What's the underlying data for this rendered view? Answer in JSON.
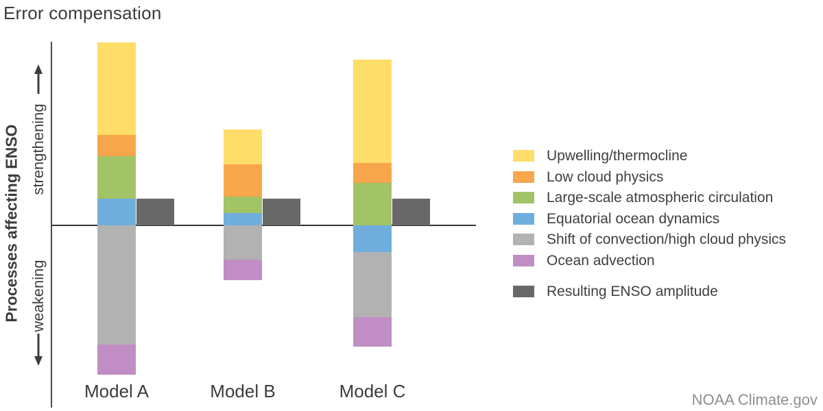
{
  "title": "Error compensation",
  "y_axis": {
    "label": "Processes affecting ENSO",
    "upper_label": "strengthening",
    "lower_label": "weakening"
  },
  "attribution": "NOAA Climate.gov",
  "colors": {
    "upwelling_thermocline": "#FFDD69",
    "low_cloud_physics": "#F8A64B",
    "large_scale_atmospheric_circulation": "#A2C366",
    "equatorial_ocean_dynamics": "#6FAEDC",
    "shift_of_convection_high_cloud_physics": "#B2B2B2",
    "ocean_advection": "#C08EC4",
    "resulting_enso_amplitude": "#686868",
    "text_dark": "#3C3C3C",
    "text_muted": "#8E8E8E",
    "axis": "#4A4A4A"
  },
  "legend": {
    "process_items": [
      {
        "key": "upwelling_thermocline",
        "label": "Upwelling/thermocline"
      },
      {
        "key": "low_cloud_physics",
        "label": "Low cloud physics"
      },
      {
        "key": "large_scale_atmospheric_circulation",
        "label": "Large-scale atmospheric circulation"
      },
      {
        "key": "equatorial_ocean_dynamics",
        "label": "Equatorial ocean dynamics"
      },
      {
        "key": "shift_of_convection_high_cloud_physics",
        "label": "Shift of convection/high cloud physics"
      },
      {
        "key": "ocean_advection",
        "label": "Ocean advection"
      }
    ],
    "result_item": {
      "key": "resulting_enso_amplitude",
      "label": "Resulting ENSO amplitude"
    }
  },
  "chart_data": {
    "type": "bar",
    "subtype": "diverging stacked bars (schematic, no numeric axis)",
    "title": "Error compensation",
    "xlabel": "",
    "ylabel": "Processes affecting ENSO (strengthening up / weakening down)",
    "units": "arbitrary relative contribution (pixel heights read from figure)",
    "grid": false,
    "legend_position": "right",
    "categories": [
      "Model A",
      "Model B",
      "Model C"
    ],
    "series": [
      {
        "name": "Upwelling/thermocline",
        "key": "upwelling_thermocline",
        "values": [
          135,
          51,
          151
        ]
      },
      {
        "name": "Low cloud physics",
        "key": "low_cloud_physics",
        "values": [
          31,
          47,
          29
        ]
      },
      {
        "name": "Large-scale atmospheric circulation",
        "key": "large_scale_atmospheric_circulation",
        "values": [
          62,
          24,
          62
        ]
      },
      {
        "name": "Equatorial ocean dynamics",
        "key": "equatorial_ocean_dynamics",
        "values": [
          39,
          18,
          -39
        ]
      },
      {
        "name": "Shift of convection/high cloud physics",
        "key": "shift_of_convection_high_cloud_physics",
        "values": [
          -174,
          -50,
          -95
        ]
      },
      {
        "name": "Ocean advection",
        "key": "ocean_advection",
        "values": [
          -44,
          -30,
          -43
        ]
      },
      {
        "name": "Resulting ENSO amplitude",
        "key": "resulting_enso_amplitude",
        "values": [
          39,
          39,
          39
        ]
      }
    ],
    "models": [
      {
        "name": "Model A",
        "stack_up": [
          {
            "process": "equatorial_ocean_dynamics",
            "value": 39
          },
          {
            "process": "large_scale_atmospheric_circulation",
            "value": 62
          },
          {
            "process": "low_cloud_physics",
            "value": 31
          },
          {
            "process": "upwelling_thermocline",
            "value": 135
          }
        ],
        "stack_down": [
          {
            "process": "shift_of_convection_high_cloud_physics",
            "value": 174
          },
          {
            "process": "ocean_advection",
            "value": 44
          }
        ],
        "resulting_amplitude": 39
      },
      {
        "name": "Model B",
        "stack_up": [
          {
            "process": "equatorial_ocean_dynamics",
            "value": 18
          },
          {
            "process": "large_scale_atmospheric_circulation",
            "value": 24
          },
          {
            "process": "low_cloud_physics",
            "value": 47
          },
          {
            "process": "upwelling_thermocline",
            "value": 51
          }
        ],
        "stack_down": [
          {
            "process": "shift_of_convection_high_cloud_physics",
            "value": 50
          },
          {
            "process": "ocean_advection",
            "value": 30
          }
        ],
        "resulting_amplitude": 39
      },
      {
        "name": "Model C",
        "stack_up": [
          {
            "process": "large_scale_atmospheric_circulation",
            "value": 62
          },
          {
            "process": "low_cloud_physics",
            "value": 29
          },
          {
            "process": "upwelling_thermocline",
            "value": 151
          }
        ],
        "stack_down": [
          {
            "process": "equatorial_ocean_dynamics",
            "value": 39
          },
          {
            "process": "shift_of_convection_high_cloud_physics",
            "value": 95
          },
          {
            "process": "ocean_advection",
            "value": 43
          }
        ],
        "resulting_amplitude": 39
      }
    ]
  }
}
